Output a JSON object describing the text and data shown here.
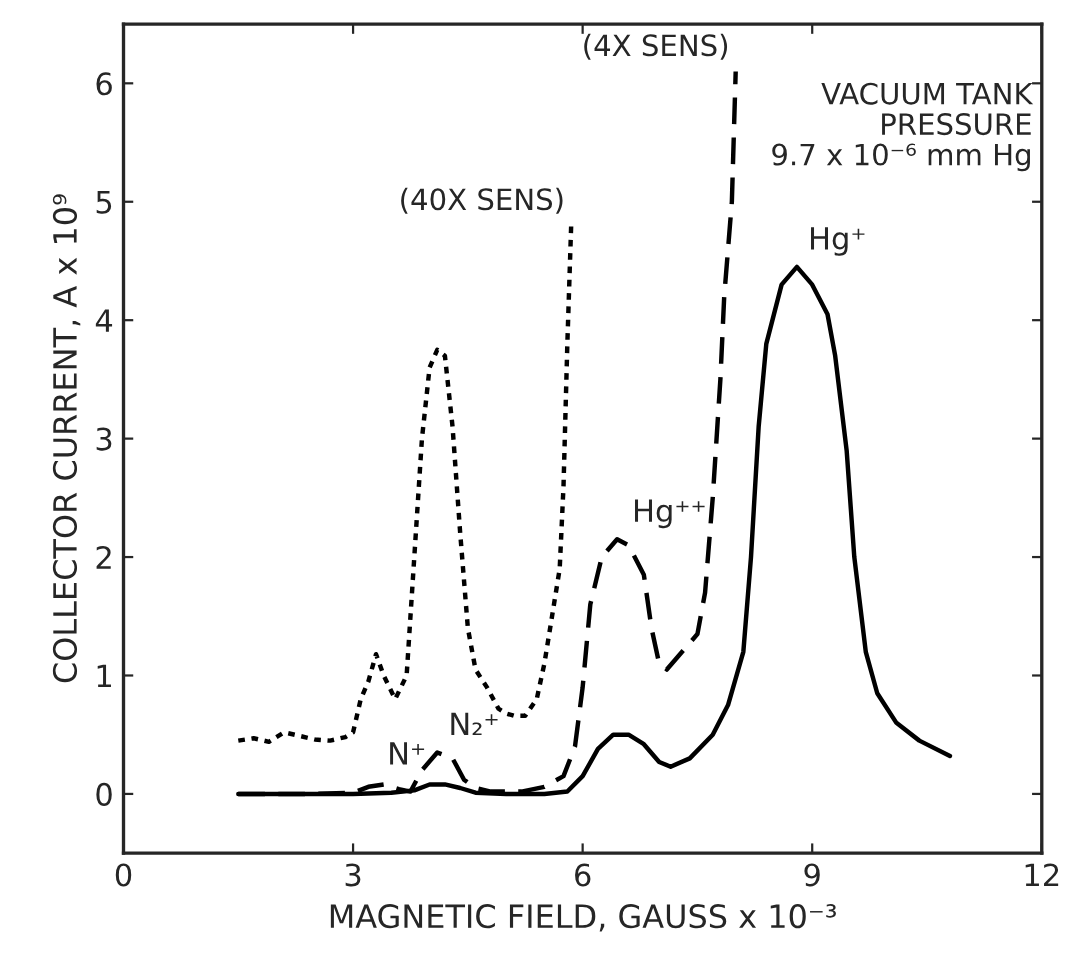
{
  "chart_data": {
    "type": "line",
    "xlabel": "MAGNETIC FIELD, GAUSS x 10⁻³",
    "ylabel": "COLLECTOR CURRENT, A x 10⁹",
    "xlim": [
      0,
      12
    ],
    "xticks": [
      0,
      3,
      6,
      9,
      12
    ],
    "ylim": [
      -0.5,
      6.5
    ],
    "yticks": [
      0,
      1,
      2,
      3,
      4,
      5,
      6
    ],
    "grid": false,
    "legend": false,
    "marker": "none",
    "series": [
      {
        "name": "(40X SENS)",
        "color": "#000000",
        "line_style": "dotted",
        "x": [
          1.5,
          1.7,
          1.9,
          2.1,
          2.3,
          2.5,
          2.7,
          2.9,
          3.0,
          3.1,
          3.2,
          3.3,
          3.4,
          3.55,
          3.7,
          3.8,
          3.9,
          4.0,
          4.1,
          4.2,
          4.3,
          4.4,
          4.5,
          4.6,
          4.75,
          4.9,
          5.0,
          5.1,
          5.25,
          5.4,
          5.5,
          5.6,
          5.7,
          5.75,
          5.8,
          5.85
        ],
        "values": [
          0.45,
          0.47,
          0.44,
          0.52,
          0.49,
          0.46,
          0.45,
          0.48,
          0.52,
          0.8,
          0.95,
          1.18,
          1.0,
          0.8,
          1.0,
          2.0,
          3.0,
          3.6,
          3.75,
          3.7,
          3.1,
          2.2,
          1.4,
          1.05,
          0.9,
          0.72,
          0.68,
          0.66,
          0.66,
          0.8,
          1.1,
          1.5,
          1.9,
          2.6,
          3.8,
          4.8
        ]
      },
      {
        "name": "(4X SENS)",
        "color": "#000000",
        "line_style": "dashed",
        "x": [
          1.5,
          2.5,
          3.0,
          3.2,
          3.4,
          3.6,
          3.75,
          3.9,
          4.1,
          4.3,
          4.45,
          4.6,
          4.8,
          5.2,
          5.5,
          5.75,
          5.9,
          6.0,
          6.1,
          6.25,
          6.45,
          6.6,
          6.8,
          6.9,
          7.0,
          7.1,
          7.3,
          7.5,
          7.6,
          7.7,
          7.8,
          7.85,
          7.95,
          8.0
        ],
        "values": [
          0.0,
          0.0,
          0.01,
          0.06,
          0.08,
          0.04,
          0.02,
          0.2,
          0.35,
          0.3,
          0.12,
          0.05,
          0.02,
          0.02,
          0.06,
          0.15,
          0.4,
          0.9,
          1.6,
          2.0,
          2.15,
          2.1,
          1.85,
          1.4,
          1.1,
          1.05,
          1.2,
          1.35,
          1.7,
          2.5,
          3.5,
          4.2,
          5.0,
          6.1
        ]
      },
      {
        "color": "#000000",
        "line_style": "solid",
        "x": [
          1.5,
          3.0,
          3.5,
          3.8,
          4.0,
          4.2,
          4.4,
          4.6,
          5.0,
          5.5,
          5.8,
          6.0,
          6.2,
          6.4,
          6.6,
          6.8,
          7.0,
          7.15,
          7.4,
          7.7,
          7.9,
          8.1,
          8.2,
          8.3,
          8.4,
          8.6,
          8.8,
          9.0,
          9.2,
          9.3,
          9.45,
          9.55,
          9.7,
          9.85,
          10.1,
          10.4,
          10.8
        ],
        "values": [
          0.0,
          0.0,
          0.01,
          0.03,
          0.08,
          0.08,
          0.05,
          0.01,
          0.0,
          0.0,
          0.02,
          0.15,
          0.38,
          0.5,
          0.5,
          0.42,
          0.27,
          0.23,
          0.3,
          0.5,
          0.75,
          1.2,
          2.0,
          3.1,
          3.8,
          4.3,
          4.45,
          4.3,
          4.05,
          3.7,
          2.9,
          2.0,
          1.2,
          0.85,
          0.6,
          0.45,
          0.32
        ]
      }
    ],
    "annotations": [
      {
        "text": "N⁺",
        "x": 3.3,
        "y": 0.1
      },
      {
        "text": "N₂⁺",
        "x": 4.1,
        "y": 0.35
      },
      {
        "text": "Hg⁺⁺",
        "x": 6.5,
        "y": 2.15
      },
      {
        "text": "Hg⁺",
        "x": 8.8,
        "y": 4.45
      },
      "VACUUM TANK\nPRESSURE\n9.7 x 10⁻⁶ mm Hg"
    ]
  }
}
